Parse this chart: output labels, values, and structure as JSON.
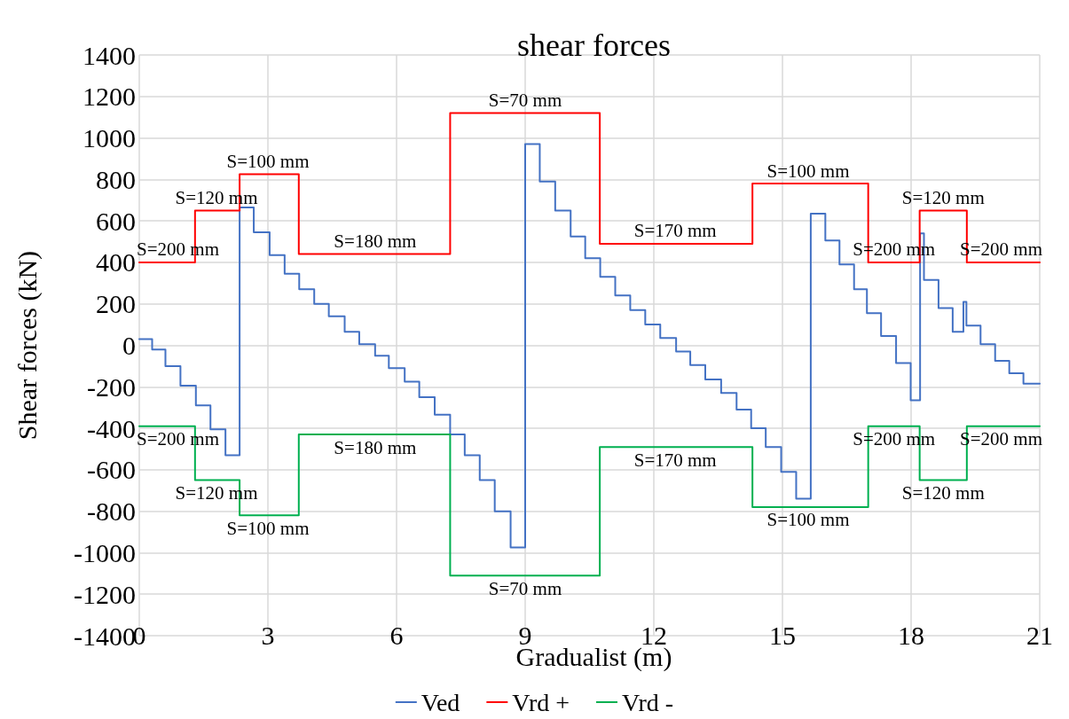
{
  "chart_data": {
    "type": "step",
    "title": "shear forces",
    "xlabel": "Gradualist (m)",
    "ylabel": "Shear forces (kN)",
    "xlim": [
      0,
      21
    ],
    "xticks": [
      0,
      3,
      6,
      9,
      12,
      15,
      18,
      21
    ],
    "ylim": [
      -1400,
      1400
    ],
    "yticks": [
      -1400,
      -1200,
      -1000,
      -800,
      -600,
      -400,
      -200,
      0,
      200,
      400,
      600,
      800,
      1000,
      1200,
      1400
    ],
    "grid": true,
    "legend": "bottom",
    "marker": "none",
    "line_style": "solid",
    "series": [
      {
        "name": "Ved",
        "color": "#4472c4",
        "x": [
          0,
          0.3,
          0.61,
          0.96,
          1.32,
          1.66,
          2.01,
          2.34,
          2.67,
          3.04,
          3.39,
          3.73,
          4.08,
          4.42,
          4.79,
          5.13,
          5.5,
          5.82,
          6.19,
          6.53,
          6.89,
          7.25,
          7.59,
          7.94,
          8.29,
          8.66,
          9.0,
          9.34,
          9.7,
          10.06,
          10.4,
          10.75,
          11.1,
          11.45,
          11.8,
          12.15,
          12.52,
          12.85,
          13.2,
          13.57,
          13.93,
          14.27,
          14.61,
          14.97,
          15.32,
          15.66,
          16.0,
          16.33,
          16.67,
          16.97,
          17.3,
          17.65,
          17.99,
          18.21,
          18.3,
          18.64,
          18.97,
          19.22,
          19.29,
          19.62,
          19.96,
          20.29,
          20.62,
          21
        ],
        "values": [
          30,
          -20,
          -100,
          -195,
          -290,
          -405,
          -530,
          665,
          545,
          435,
          345,
          270,
          200,
          140,
          65,
          5,
          -50,
          -110,
          -175,
          -250,
          -335,
          -430,
          -530,
          -650,
          -800,
          -975,
          970,
          790,
          650,
          525,
          420,
          330,
          240,
          170,
          100,
          35,
          -30,
          -95,
          -165,
          -230,
          -310,
          -400,
          -490,
          -610,
          -740,
          635,
          505,
          390,
          270,
          155,
          45,
          -85,
          -265,
          540,
          315,
          180,
          65,
          210,
          95,
          5,
          -75,
          -135,
          -185,
          -185
        ]
      },
      {
        "name": "Vrd +",
        "color": "#ff0000",
        "x": [
          0,
          1.3,
          2.34,
          3.72,
          7.25,
          10.74,
          14.3,
          17.0,
          18.2,
          19.3,
          21
        ],
        "values": [
          400,
          650,
          825,
          440,
          1120,
          490,
          780,
          400,
          650,
          400,
          400
        ]
      },
      {
        "name": "Vrd -",
        "color": "#00b050",
        "x": [
          0,
          1.3,
          2.34,
          3.72,
          7.25,
          10.74,
          14.3,
          17.0,
          18.2,
          19.3,
          21
        ],
        "values": [
          -390,
          -650,
          -820,
          -430,
          -1110,
          -490,
          -780,
          -390,
          -650,
          -390,
          -390
        ]
      }
    ],
    "annotations": [
      {
        "text": "S=200 mm",
        "x": 0.9,
        "y": 400
      },
      {
        "text": "S=120 mm",
        "x": 1.8,
        "y": 650
      },
      {
        "text": "S=100 mm",
        "x": 3.0,
        "y": 825
      },
      {
        "text": "S=180 mm",
        "x": 5.5,
        "y": 440
      },
      {
        "text": "S=70 mm",
        "x": 9.0,
        "y": 1120
      },
      {
        "text": "S=170 mm",
        "x": 12.5,
        "y": 490
      },
      {
        "text": "S=100 mm",
        "x": 15.6,
        "y": 780
      },
      {
        "text": "S=200 mm",
        "x": 17.6,
        "y": 400
      },
      {
        "text": "S=120 mm",
        "x": 18.75,
        "y": 650
      },
      {
        "text": "S=200 mm",
        "x": 20.1,
        "y": 400
      },
      {
        "text": "S=200 mm",
        "x": 0.9,
        "y": -390
      },
      {
        "text": "S=120 mm",
        "x": 1.8,
        "y": -650
      },
      {
        "text": "S=100 mm",
        "x": 3.0,
        "y": -820
      },
      {
        "text": "S=180 mm",
        "x": 5.5,
        "y": -430
      },
      {
        "text": "S=70 mm",
        "x": 9.0,
        "y": -1110
      },
      {
        "text": "S=170 mm",
        "x": 12.5,
        "y": -490
      },
      {
        "text": "S=100 mm",
        "x": 15.6,
        "y": -780
      },
      {
        "text": "S=200 mm",
        "x": 17.6,
        "y": -390
      },
      {
        "text": "S=120 mm",
        "x": 18.75,
        "y": -650
      },
      {
        "text": "S=200 mm",
        "x": 20.1,
        "y": -390
      }
    ]
  }
}
